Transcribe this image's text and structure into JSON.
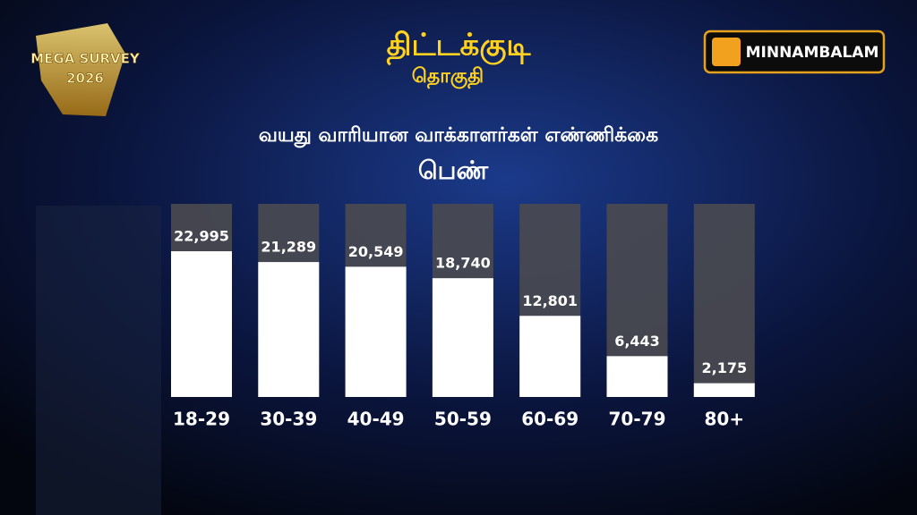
{
  "chart_data": {
    "type": "bar",
    "title": "திட்டக்குடி",
    "subtitle": "தொகுதி",
    "chart_title": "வயது வாரியான வாக்காளர்கள் எண்ணிக்கை",
    "group": "பெண்",
    "categories": [
      "18-29",
      "30-39",
      "40-49",
      "50-59",
      "60-69",
      "70-79",
      "80+"
    ],
    "values": [
      22995,
      21289,
      20549,
      18740,
      12801,
      6443,
      2175
    ],
    "value_labels": [
      "22,995",
      "21,289",
      "20,549",
      "18,740",
      "12,801",
      "6,443",
      "2,175"
    ],
    "color": "#ffffff"
  },
  "branding": {
    "badge_top": "MEGA SURVEY",
    "badge_year": "2026",
    "logo": "MINNAMBALAM"
  }
}
